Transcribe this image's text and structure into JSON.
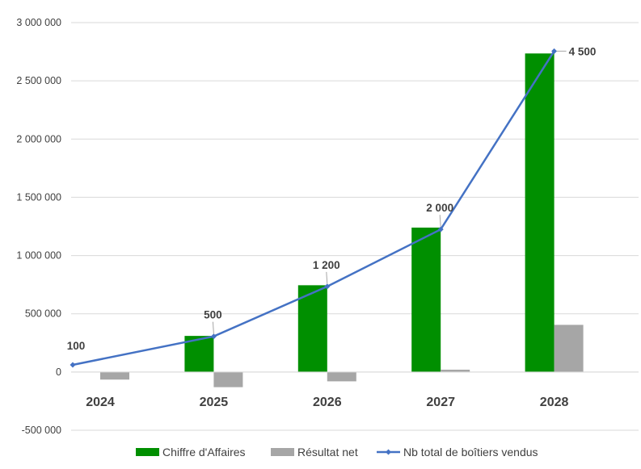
{
  "chart_data": {
    "type": "bar",
    "categories": [
      "2024",
      "2025",
      "2026",
      "2027",
      "2028"
    ],
    "ylim": [
      -500000,
      3000000
    ],
    "yticks": [
      -500000,
      0,
      500000,
      1000000,
      1500000,
      2000000,
      2500000,
      3000000
    ],
    "ytick_labels": [
      "-500 000",
      "0",
      "500 000",
      "1 000 000",
      "1 500 000",
      "2 000 000",
      "2 500 000",
      "3 000 000"
    ],
    "grid": true,
    "legend_position": "bottom",
    "series": [
      {
        "name": "Chiffre d'Affaires",
        "kind": "bar",
        "color": "#008f00",
        "values": [
          0,
          310000,
          745000,
          1240000,
          2735000
        ]
      },
      {
        "name": "Résultat net",
        "kind": "bar",
        "color": "#a6a6a6",
        "values": [
          -65000,
          -130000,
          -80000,
          20000,
          405000
        ]
      },
      {
        "name": "Nb total de boîtiers vendus",
        "kind": "line",
        "color": "#4472c4",
        "values": [
          100,
          500,
          1200,
          2000,
          4500
        ],
        "labels": [
          "100",
          "500",
          "1 200",
          "2 000",
          "4 500"
        ],
        "secondary_range": [
          0,
          4900
        ]
      }
    ]
  }
}
